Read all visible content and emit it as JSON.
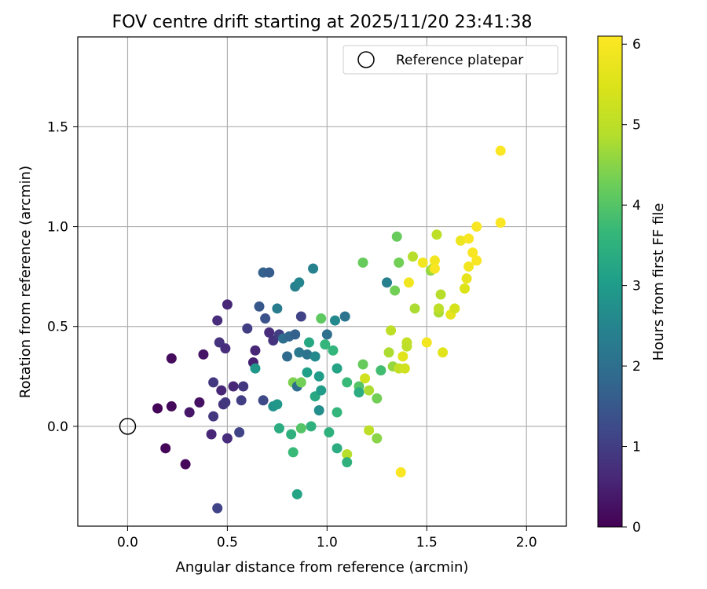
{
  "chart_data": {
    "type": "scatter",
    "title": "FOV centre drift starting at 2025/11/20 23:41:38",
    "xlabel": "Angular distance from reference (arcmin)",
    "ylabel": "Rotation from reference (arcmin)",
    "xlim": [
      -0.25,
      2.2
    ],
    "ylim": [
      -0.5,
      1.95
    ],
    "xticks": [
      0.0,
      0.5,
      1.0,
      1.5,
      2.0
    ],
    "xtick_labels": [
      "0.0",
      "0.5",
      "1.0",
      "1.5",
      "2.0"
    ],
    "yticks": [
      0.0,
      0.5,
      1.0,
      1.5
    ],
    "ytick_labels": [
      "0.0",
      "0.5",
      "1.0",
      "1.5"
    ],
    "grid": true,
    "legend": {
      "position": "top-right",
      "entries": [
        "Reference platepar"
      ]
    },
    "reference": {
      "x": 0.0,
      "y": 0.0,
      "label": "Reference platepar"
    },
    "colorbar": {
      "label": "Hours from first FF file",
      "colormap": "viridis",
      "range": [
        0,
        6.1
      ],
      "ticks": [
        0,
        1,
        2,
        3,
        4,
        5,
        6
      ],
      "tick_labels": [
        "0",
        "1",
        "2",
        "3",
        "4",
        "5",
        "6"
      ]
    },
    "series": [
      {
        "name": "FOV centre drift",
        "points": [
          {
            "x": 0.15,
            "y": 0.09,
            "c": 0.05
          },
          {
            "x": 0.22,
            "y": 0.1,
            "c": 0.12
          },
          {
            "x": 0.19,
            "y": -0.11,
            "c": 0.08
          },
          {
            "x": 0.29,
            "y": -0.19,
            "c": 0.1
          },
          {
            "x": 0.22,
            "y": 0.34,
            "c": 0.15
          },
          {
            "x": 0.31,
            "y": 0.07,
            "c": 0.35
          },
          {
            "x": 0.36,
            "y": 0.12,
            "c": 0.25
          },
          {
            "x": 0.38,
            "y": 0.36,
            "c": 0.3
          },
          {
            "x": 0.42,
            "y": -0.04,
            "c": 0.6
          },
          {
            "x": 0.43,
            "y": 0.05,
            "c": 0.9
          },
          {
            "x": 0.45,
            "y": -0.41,
            "c": 1.1
          },
          {
            "x": 0.45,
            "y": 0.53,
            "c": 0.7
          },
          {
            "x": 0.46,
            "y": 0.42,
            "c": 0.8
          },
          {
            "x": 0.47,
            "y": 0.18,
            "c": 0.6
          },
          {
            "x": 0.48,
            "y": 0.11,
            "c": 0.8
          },
          {
            "x": 0.49,
            "y": 0.12,
            "c": 0.9
          },
          {
            "x": 0.49,
            "y": 0.39,
            "c": 0.7
          },
          {
            "x": 0.5,
            "y": 0.61,
            "c": 0.6
          },
          {
            "x": 0.5,
            "y": -0.06,
            "c": 0.7
          },
          {
            "x": 0.43,
            "y": 0.22,
            "c": 0.9
          },
          {
            "x": 0.53,
            "y": 0.2,
            "c": 0.6
          },
          {
            "x": 0.56,
            "y": -0.03,
            "c": 1.1
          },
          {
            "x": 0.57,
            "y": 0.13,
            "c": 1.0
          },
          {
            "x": 0.58,
            "y": 0.2,
            "c": 0.9
          },
          {
            "x": 0.6,
            "y": 0.49,
            "c": 1.0
          },
          {
            "x": 0.63,
            "y": 0.32,
            "c": 0.5
          },
          {
            "x": 0.64,
            "y": 0.38,
            "c": 0.6
          },
          {
            "x": 0.64,
            "y": 0.29,
            "c": 2.9
          },
          {
            "x": 0.66,
            "y": 0.6,
            "c": 1.5
          },
          {
            "x": 0.68,
            "y": 0.13,
            "c": 1.2
          },
          {
            "x": 0.68,
            "y": 0.77,
            "c": 1.7
          },
          {
            "x": 0.69,
            "y": 0.54,
            "c": 1.4
          },
          {
            "x": 0.71,
            "y": 0.77,
            "c": 1.6
          },
          {
            "x": 0.71,
            "y": 0.47,
            "c": 0.7
          },
          {
            "x": 0.73,
            "y": 0.43,
            "c": 0.8
          },
          {
            "x": 0.73,
            "y": 0.1,
            "c": 2.8
          },
          {
            "x": 0.75,
            "y": 0.59,
            "c": 2.3
          },
          {
            "x": 0.75,
            "y": 0.11,
            "c": 2.9
          },
          {
            "x": 0.76,
            "y": 0.46,
            "c": 1.0
          },
          {
            "x": 0.76,
            "y": -0.01,
            "c": 3.4
          },
          {
            "x": 0.78,
            "y": 0.44,
            "c": 2.0
          },
          {
            "x": 0.8,
            "y": 0.35,
            "c": 1.9
          },
          {
            "x": 0.81,
            "y": 0.45,
            "c": 1.8
          },
          {
            "x": 0.82,
            "y": -0.04,
            "c": 3.5
          },
          {
            "x": 0.83,
            "y": -0.13,
            "c": 3.7
          },
          {
            "x": 0.83,
            "y": 0.22,
            "c": 4.4
          },
          {
            "x": 0.84,
            "y": 0.46,
            "c": 1.7
          },
          {
            "x": 0.84,
            "y": 0.7,
            "c": 2.4
          },
          {
            "x": 0.85,
            "y": 0.2,
            "c": 2.0
          },
          {
            "x": 0.85,
            "y": -0.34,
            "c": 3.2
          },
          {
            "x": 0.86,
            "y": 0.72,
            "c": 2.5
          },
          {
            "x": 0.86,
            "y": 0.37,
            "c": 2.2
          },
          {
            "x": 0.87,
            "y": 0.22,
            "c": 4.3
          },
          {
            "x": 0.87,
            "y": 0.55,
            "c": 1.1
          },
          {
            "x": 0.87,
            "y": -0.01,
            "c": 4.0
          },
          {
            "x": 0.9,
            "y": 0.36,
            "c": 2.1
          },
          {
            "x": 0.9,
            "y": 0.27,
            "c": 3.1
          },
          {
            "x": 0.91,
            "y": 0.42,
            "c": 3.3
          },
          {
            "x": 0.92,
            "y": 0.0,
            "c": 3.5
          },
          {
            "x": 0.93,
            "y": 0.79,
            "c": 2.4
          },
          {
            "x": 0.94,
            "y": 0.15,
            "c": 3.3
          },
          {
            "x": 0.94,
            "y": 0.35,
            "c": 2.6
          },
          {
            "x": 0.96,
            "y": 0.25,
            "c": 3.0
          },
          {
            "x": 0.96,
            "y": 0.08,
            "c": 2.7
          },
          {
            "x": 0.97,
            "y": 0.54,
            "c": 4.1
          },
          {
            "x": 0.97,
            "y": 0.18,
            "c": 3.0
          },
          {
            "x": 0.99,
            "y": 0.41,
            "c": 3.6
          },
          {
            "x": 1.0,
            "y": 0.46,
            "c": 2.0
          },
          {
            "x": 1.01,
            "y": -0.03,
            "c": 3.5
          },
          {
            "x": 1.03,
            "y": 0.38,
            "c": 3.6
          },
          {
            "x": 1.04,
            "y": 0.53,
            "c": 2.6
          },
          {
            "x": 1.05,
            "y": 0.29,
            "c": 3.2
          },
          {
            "x": 1.05,
            "y": 0.07,
            "c": 3.6
          },
          {
            "x": 1.05,
            "y": -0.11,
            "c": 3.4
          },
          {
            "x": 1.09,
            "y": 0.55,
            "c": 2.1
          },
          {
            "x": 1.1,
            "y": 0.22,
            "c": 3.7
          },
          {
            "x": 1.1,
            "y": -0.14,
            "c": 4.9
          },
          {
            "x": 1.1,
            "y": -0.18,
            "c": 3.5
          },
          {
            "x": 1.16,
            "y": 0.2,
            "c": 4.0
          },
          {
            "x": 1.16,
            "y": 0.17,
            "c": 3.4
          },
          {
            "x": 1.18,
            "y": 0.31,
            "c": 4.2
          },
          {
            "x": 1.18,
            "y": 0.82,
            "c": 4.2
          },
          {
            "x": 1.19,
            "y": 0.24,
            "c": 5.3
          },
          {
            "x": 1.21,
            "y": 0.18,
            "c": 4.8
          },
          {
            "x": 1.21,
            "y": -0.02,
            "c": 5.0
          },
          {
            "x": 1.25,
            "y": 0.14,
            "c": 4.3
          },
          {
            "x": 1.25,
            "y": -0.06,
            "c": 4.5
          },
          {
            "x": 1.27,
            "y": 0.28,
            "c": 3.8
          },
          {
            "x": 1.3,
            "y": 0.72,
            "c": 2.4
          },
          {
            "x": 1.31,
            "y": 0.37,
            "c": 4.8
          },
          {
            "x": 1.32,
            "y": 0.48,
            "c": 5.0
          },
          {
            "x": 1.33,
            "y": 0.3,
            "c": 4.6
          },
          {
            "x": 1.34,
            "y": 0.68,
            "c": 4.3
          },
          {
            "x": 1.35,
            "y": 0.95,
            "c": 4.2
          },
          {
            "x": 1.36,
            "y": 0.82,
            "c": 4.3
          },
          {
            "x": 1.36,
            "y": 0.29,
            "c": 5.1
          },
          {
            "x": 1.37,
            "y": -0.23,
            "c": 6.0
          },
          {
            "x": 1.38,
            "y": 0.35,
            "c": 5.6
          },
          {
            "x": 1.39,
            "y": 0.29,
            "c": 5.3
          },
          {
            "x": 1.4,
            "y": 0.42,
            "c": 5.1
          },
          {
            "x": 1.4,
            "y": 0.4,
            "c": 5.0
          },
          {
            "x": 1.41,
            "y": 0.72,
            "c": 5.9
          },
          {
            "x": 1.43,
            "y": 0.85,
            "c": 4.9
          },
          {
            "x": 1.44,
            "y": 0.59,
            "c": 4.8
          },
          {
            "x": 1.48,
            "y": 0.82,
            "c": 5.9
          },
          {
            "x": 1.5,
            "y": 0.42,
            "c": 5.9
          },
          {
            "x": 1.52,
            "y": 0.78,
            "c": 4.6
          },
          {
            "x": 1.53,
            "y": 0.79,
            "c": 4.8
          },
          {
            "x": 1.54,
            "y": 0.83,
            "c": 5.9
          },
          {
            "x": 1.54,
            "y": 0.79,
            "c": 6.0
          },
          {
            "x": 1.55,
            "y": 0.96,
            "c": 5.0
          },
          {
            "x": 1.56,
            "y": 0.57,
            "c": 4.8
          },
          {
            "x": 1.57,
            "y": 0.66,
            "c": 4.9
          },
          {
            "x": 1.56,
            "y": 0.59,
            "c": 5.0
          },
          {
            "x": 1.58,
            "y": 0.37,
            "c": 5.6
          },
          {
            "x": 1.62,
            "y": 0.56,
            "c": 5.7
          },
          {
            "x": 1.64,
            "y": 0.59,
            "c": 5.4
          },
          {
            "x": 1.67,
            "y": 0.93,
            "c": 5.8
          },
          {
            "x": 1.69,
            "y": 0.69,
            "c": 5.5
          },
          {
            "x": 1.7,
            "y": 0.74,
            "c": 5.7
          },
          {
            "x": 1.71,
            "y": 0.94,
            "c": 6.0
          },
          {
            "x": 1.71,
            "y": 0.8,
            "c": 5.9
          },
          {
            "x": 1.73,
            "y": 0.87,
            "c": 6.0
          },
          {
            "x": 1.75,
            "y": 0.83,
            "c": 6.0
          },
          {
            "x": 1.75,
            "y": 1.0,
            "c": 6.0
          },
          {
            "x": 1.87,
            "y": 1.38,
            "c": 6.05
          },
          {
            "x": 1.87,
            "y": 1.02,
            "c": 6.05
          }
        ]
      }
    ]
  }
}
